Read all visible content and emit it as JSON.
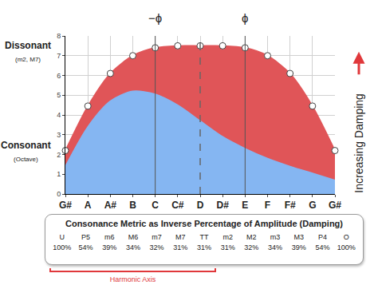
{
  "chart_data": {
    "type": "area",
    "categories": [
      "G#",
      "A",
      "A#",
      "B",
      "C",
      "C#",
      "D",
      "D#",
      "E",
      "F",
      "F#",
      "G",
      "G#"
    ],
    "series": [
      {
        "color": "#e05558",
        "marker": "circle",
        "values": [
          2.2,
          4.45,
          6.1,
          7.0,
          7.4,
          7.5,
          7.5,
          7.5,
          7.4,
          7.0,
          6.1,
          4.45,
          2.2
        ]
      },
      {
        "color": "#85b6f2",
        "values": [
          1.4,
          3.4,
          4.7,
          5.2,
          5.05,
          4.5,
          3.7,
          2.9,
          2.3,
          1.8,
          1.4,
          1.05,
          0.7
        ]
      }
    ],
    "ylim": [
      0,
      8
    ],
    "yticks": [
      0,
      1,
      2,
      3,
      4,
      5,
      6,
      7,
      8
    ],
    "grid": true,
    "annotations": [
      {
        "text": "−ϕ",
        "x": "C"
      },
      {
        "text": "ϕ",
        "x": "E"
      }
    ],
    "y_labels": {
      "high": {
        "text": "Dissonant",
        "note": "(m2, M7)"
      },
      "low": {
        "text": "Consonant",
        "note": "(Octave)"
      }
    },
    "side_label": "Increasing Damping"
  },
  "table": {
    "title": "Consonance Metric as Inverse Percentage of Amplitude (Damping)",
    "intervals": [
      "U",
      "P5",
      "m6",
      "M6",
      "m7",
      "M7",
      "TT",
      "m2",
      "M2",
      "m3",
      "M3",
      "P4",
      "O"
    ],
    "damping": [
      "100%",
      "54%",
      "39%",
      "34%",
      "32%",
      "31%",
      "31%",
      "31%",
      "32%",
      "34%",
      "39%",
      "54%",
      "100%"
    ],
    "bracket": {
      "text": "Harmonic Axis",
      "from": "U",
      "to": "TT"
    }
  }
}
